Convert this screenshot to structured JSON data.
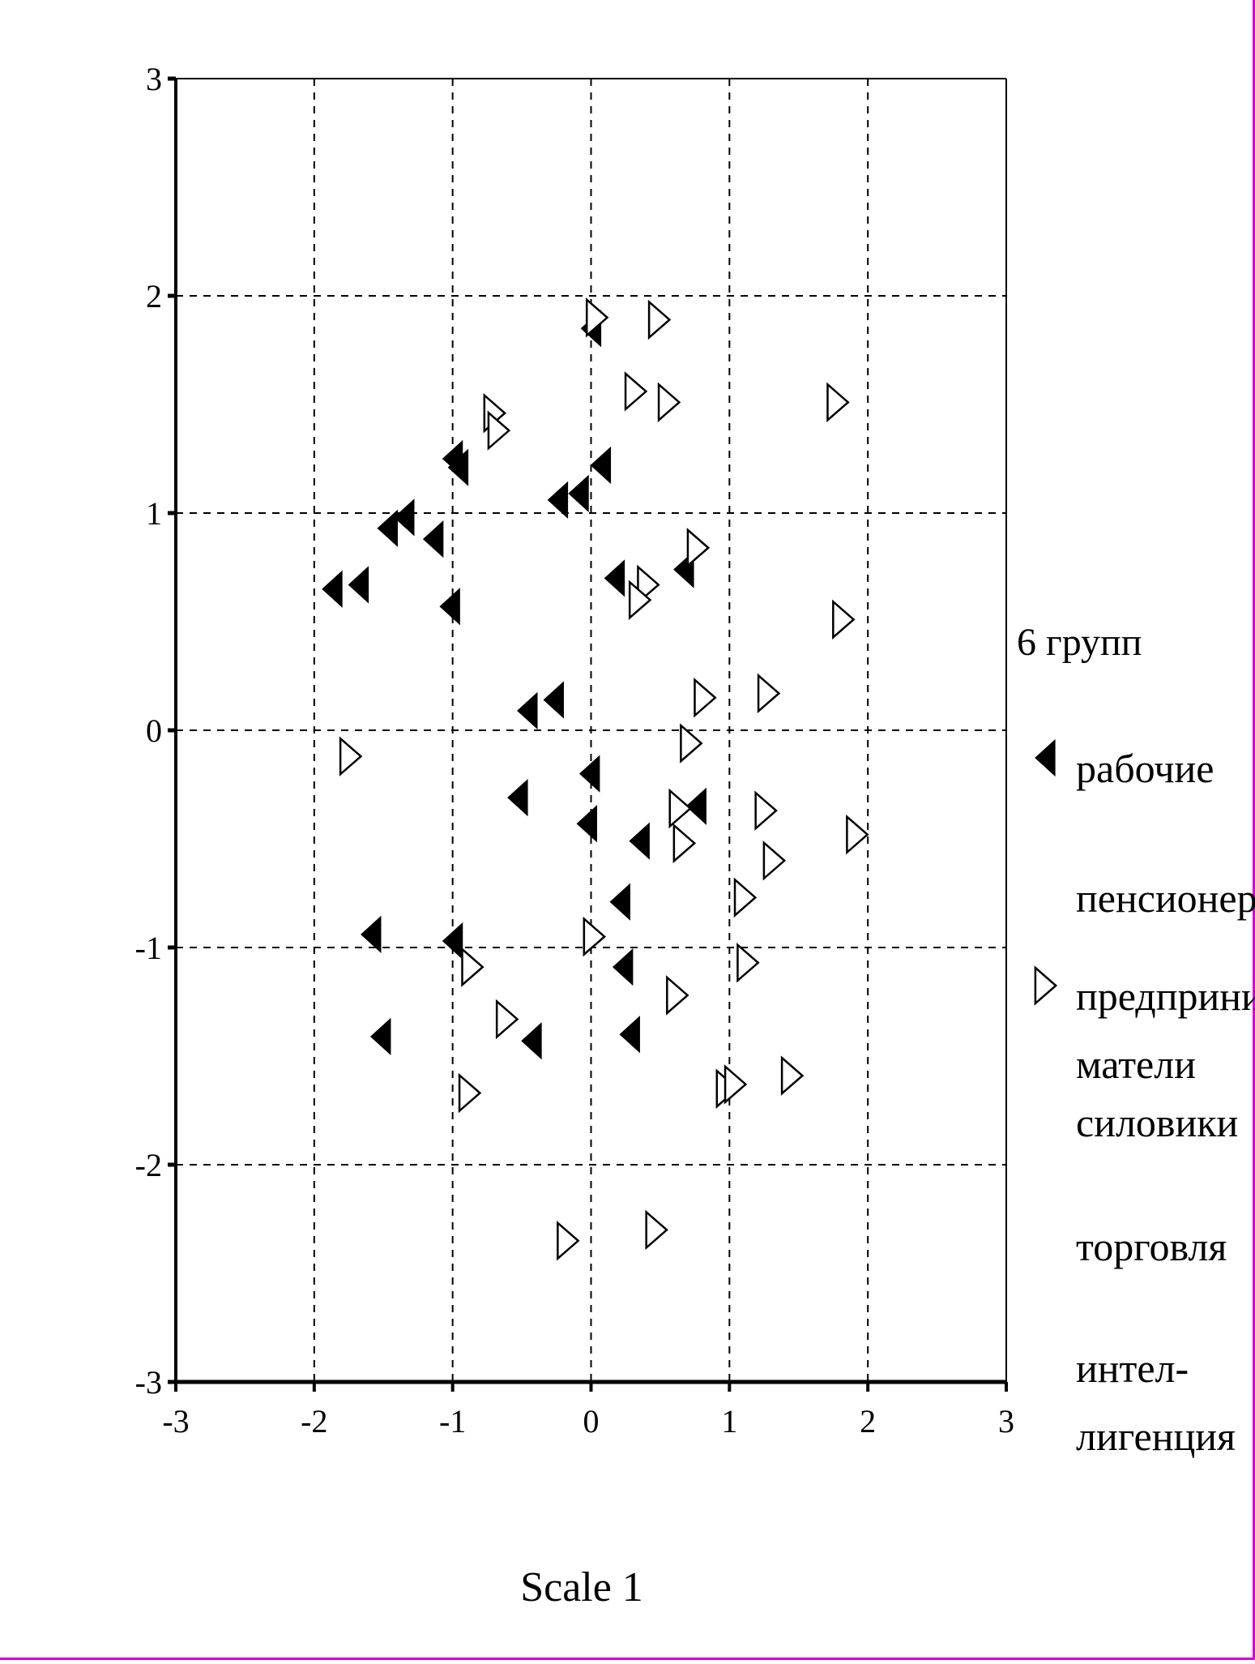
{
  "chart_data": {
    "type": "scatter",
    "xlabel": "Scale 1",
    "ylabel": "",
    "xlim": [
      -3,
      3
    ],
    "ylim": [
      -3,
      3
    ],
    "xticks": [
      "-3",
      "-2",
      "-1",
      "0",
      "1",
      "2",
      "3"
    ],
    "yticks": [
      "3",
      "2",
      "1",
      "0",
      "-1",
      "-2",
      "-3"
    ],
    "grid": true,
    "legend": {
      "title": "6 групп",
      "placement": "right",
      "entries": [
        {
          "lines": [
            "рабочие"
          ],
          "marker": "filled-left-triangle"
        },
        {
          "lines": [
            "пенсионеры"
          ],
          "marker": "none"
        },
        {
          "lines": [
            "предприни-",
            "матели"
          ],
          "marker": "open-right-triangle"
        },
        {
          "lines": [
            "силовики"
          ],
          "marker": "none"
        },
        {
          "lines": [
            "торговля"
          ],
          "marker": "none"
        },
        {
          "lines": [
            "интел-",
            "лигенция"
          ],
          "marker": "none"
        }
      ]
    },
    "series": [
      {
        "name": "рабочие",
        "marker": "filled-left-triangle",
        "color": "#000000",
        "points": [
          [
            0.0,
            1.85
          ],
          [
            -1.0,
            1.25
          ],
          [
            -0.96,
            1.21
          ],
          [
            0.07,
            1.22
          ],
          [
            -0.24,
            1.06
          ],
          [
            -0.09,
            1.09
          ],
          [
            -1.47,
            0.93
          ],
          [
            -1.35,
            0.98
          ],
          [
            -1.14,
            0.88
          ],
          [
            -1.87,
            0.65
          ],
          [
            -1.68,
            0.67
          ],
          [
            -1.02,
            0.57
          ],
          [
            0.17,
            0.7
          ],
          [
            0.67,
            0.74
          ],
          [
            -0.46,
            0.09
          ],
          [
            -0.27,
            0.14
          ],
          [
            -0.01,
            -0.2
          ],
          [
            -0.53,
            -0.31
          ],
          [
            -0.03,
            -0.43
          ],
          [
            0.35,
            -0.51
          ],
          [
            0.76,
            -0.35
          ],
          [
            0.21,
            -0.79
          ],
          [
            -1.59,
            -0.94
          ],
          [
            -1.0,
            -0.97
          ],
          [
            0.23,
            -1.09
          ],
          [
            0.28,
            -1.4
          ],
          [
            -1.52,
            -1.41
          ],
          [
            -0.43,
            -1.43
          ]
        ]
      },
      {
        "name": "предприни- матели",
        "marker": "open-right-triangle",
        "color": "#000000",
        "points": [
          [
            0.04,
            1.9
          ],
          [
            0.49,
            1.89
          ],
          [
            0.32,
            1.56
          ],
          [
            0.56,
            1.51
          ],
          [
            1.78,
            1.51
          ],
          [
            -0.7,
            1.46
          ],
          [
            -0.67,
            1.38
          ],
          [
            0.77,
            0.84
          ],
          [
            0.41,
            0.67
          ],
          [
            0.35,
            0.6
          ],
          [
            1.82,
            0.51
          ],
          [
            0.82,
            0.15
          ],
          [
            1.28,
            0.17
          ],
          [
            0.72,
            -0.06
          ],
          [
            -1.74,
            -0.12
          ],
          [
            0.64,
            -0.36
          ],
          [
            1.26,
            -0.37
          ],
          [
            0.67,
            -0.52
          ],
          [
            1.92,
            -0.48
          ],
          [
            1.32,
            -0.6
          ],
          [
            1.11,
            -0.77
          ],
          [
            0.02,
            -0.95
          ],
          [
            -0.86,
            -1.09
          ],
          [
            1.13,
            -1.07
          ],
          [
            0.62,
            -1.22
          ],
          [
            -0.61,
            -1.33
          ],
          [
            1.45,
            -1.59
          ],
          [
            0.98,
            -1.65
          ],
          [
            1.04,
            -1.63
          ],
          [
            -0.88,
            -1.67
          ],
          [
            -0.17,
            -2.35
          ],
          [
            0.47,
            -2.3
          ]
        ]
      }
    ]
  }
}
